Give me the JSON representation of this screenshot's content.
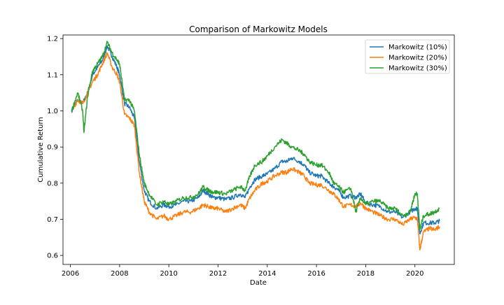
{
  "chart_data": {
    "type": "line",
    "title": "Comparison of Markowitz Models",
    "xlabel": "Date",
    "ylabel": "Cumulative Return",
    "xlim": [
      2005.7,
      2021.6
    ],
    "ylim": [
      0.575,
      1.21
    ],
    "x_ticks": [
      2006,
      2008,
      2010,
      2012,
      2014,
      2016,
      2018,
      2020
    ],
    "x_tick_labels": [
      "2006",
      "2008",
      "2010",
      "2012",
      "2014",
      "2016",
      "2018",
      "2020"
    ],
    "y_ticks": [
      0.6,
      0.7,
      0.8,
      0.9,
      1.0,
      1.1,
      1.2
    ],
    "y_tick_labels": [
      "0.6",
      "0.7",
      "0.8",
      "0.9",
      "1.0",
      "1.1",
      "1.2"
    ],
    "grid": false,
    "legend_position": "top-right",
    "series": [
      {
        "name": "Markowitz (10%)",
        "color": "#1f77b4",
        "points": [
          [
            2006.05,
            1.0
          ],
          [
            2006.3,
            1.03
          ],
          [
            2006.5,
            1.02
          ],
          [
            2006.7,
            1.05
          ],
          [
            2006.9,
            1.1
          ],
          [
            2007.1,
            1.12
          ],
          [
            2007.3,
            1.14
          ],
          [
            2007.5,
            1.18
          ],
          [
            2007.7,
            1.15
          ],
          [
            2007.9,
            1.12
          ],
          [
            2008.0,
            1.1
          ],
          [
            2008.2,
            1.02
          ],
          [
            2008.4,
            1.01
          ],
          [
            2008.6,
            0.98
          ],
          [
            2008.8,
            0.86
          ],
          [
            2009.0,
            0.78
          ],
          [
            2009.2,
            0.75
          ],
          [
            2009.5,
            0.73
          ],
          [
            2009.8,
            0.74
          ],
          [
            2010.0,
            0.735
          ],
          [
            2010.3,
            0.74
          ],
          [
            2010.6,
            0.75
          ],
          [
            2010.9,
            0.75
          ],
          [
            2011.2,
            0.76
          ],
          [
            2011.4,
            0.78
          ],
          [
            2011.6,
            0.77
          ],
          [
            2011.8,
            0.76
          ],
          [
            2012.0,
            0.76
          ],
          [
            2012.3,
            0.755
          ],
          [
            2012.6,
            0.76
          ],
          [
            2012.9,
            0.77
          ],
          [
            2013.1,
            0.76
          ],
          [
            2013.3,
            0.79
          ],
          [
            2013.5,
            0.81
          ],
          [
            2013.8,
            0.82
          ],
          [
            2014.0,
            0.825
          ],
          [
            2014.3,
            0.84
          ],
          [
            2014.6,
            0.86
          ],
          [
            2014.8,
            0.86
          ],
          [
            2015.0,
            0.87
          ],
          [
            2015.3,
            0.86
          ],
          [
            2015.5,
            0.85
          ],
          [
            2015.7,
            0.83
          ],
          [
            2016.0,
            0.82
          ],
          [
            2016.2,
            0.82
          ],
          [
            2016.5,
            0.8
          ],
          [
            2016.7,
            0.79
          ],
          [
            2016.9,
            0.78
          ],
          [
            2017.1,
            0.76
          ],
          [
            2017.4,
            0.765
          ],
          [
            2017.6,
            0.76
          ],
          [
            2017.8,
            0.77
          ],
          [
            2018.0,
            0.745
          ],
          [
            2018.3,
            0.74
          ],
          [
            2018.6,
            0.735
          ],
          [
            2018.9,
            0.72
          ],
          [
            2019.2,
            0.72
          ],
          [
            2019.5,
            0.705
          ],
          [
            2019.8,
            0.72
          ],
          [
            2020.0,
            0.73
          ],
          [
            2020.1,
            0.73
          ],
          [
            2020.2,
            0.66
          ],
          [
            2020.35,
            0.69
          ],
          [
            2020.6,
            0.69
          ],
          [
            2020.8,
            0.69
          ],
          [
            2021.0,
            0.695
          ]
        ]
      },
      {
        "name": "Markowitz (20%)",
        "color": "#ff7f0e",
        "points": [
          [
            2006.05,
            1.0
          ],
          [
            2006.3,
            1.03
          ],
          [
            2006.5,
            1.02
          ],
          [
            2006.7,
            1.05
          ],
          [
            2006.9,
            1.08
          ],
          [
            2007.1,
            1.1
          ],
          [
            2007.3,
            1.13
          ],
          [
            2007.5,
            1.16
          ],
          [
            2007.7,
            1.12
          ],
          [
            2007.9,
            1.1
          ],
          [
            2008.0,
            1.08
          ],
          [
            2008.2,
            0.99
          ],
          [
            2008.4,
            0.98
          ],
          [
            2008.6,
            0.96
          ],
          [
            2008.8,
            0.83
          ],
          [
            2009.0,
            0.75
          ],
          [
            2009.2,
            0.72
          ],
          [
            2009.5,
            0.7
          ],
          [
            2009.8,
            0.71
          ],
          [
            2010.0,
            0.7
          ],
          [
            2010.3,
            0.71
          ],
          [
            2010.6,
            0.72
          ],
          [
            2010.9,
            0.72
          ],
          [
            2011.2,
            0.73
          ],
          [
            2011.4,
            0.74
          ],
          [
            2011.6,
            0.735
          ],
          [
            2011.8,
            0.73
          ],
          [
            2012.0,
            0.73
          ],
          [
            2012.3,
            0.72
          ],
          [
            2012.6,
            0.73
          ],
          [
            2012.9,
            0.74
          ],
          [
            2013.1,
            0.73
          ],
          [
            2013.3,
            0.76
          ],
          [
            2013.5,
            0.78
          ],
          [
            2013.8,
            0.8
          ],
          [
            2014.0,
            0.805
          ],
          [
            2014.3,
            0.82
          ],
          [
            2014.6,
            0.83
          ],
          [
            2014.8,
            0.83
          ],
          [
            2015.0,
            0.84
          ],
          [
            2015.3,
            0.83
          ],
          [
            2015.5,
            0.82
          ],
          [
            2015.7,
            0.8
          ],
          [
            2016.0,
            0.795
          ],
          [
            2016.2,
            0.795
          ],
          [
            2016.5,
            0.78
          ],
          [
            2016.7,
            0.77
          ],
          [
            2016.9,
            0.755
          ],
          [
            2017.1,
            0.735
          ],
          [
            2017.4,
            0.74
          ],
          [
            2017.6,
            0.735
          ],
          [
            2017.8,
            0.745
          ],
          [
            2018.0,
            0.73
          ],
          [
            2018.3,
            0.72
          ],
          [
            2018.6,
            0.71
          ],
          [
            2018.9,
            0.7
          ],
          [
            2019.2,
            0.7
          ],
          [
            2019.5,
            0.685
          ],
          [
            2019.8,
            0.7
          ],
          [
            2020.0,
            0.705
          ],
          [
            2020.1,
            0.7
          ],
          [
            2020.2,
            0.615
          ],
          [
            2020.35,
            0.665
          ],
          [
            2020.6,
            0.675
          ],
          [
            2020.8,
            0.67
          ],
          [
            2021.0,
            0.68
          ]
        ]
      },
      {
        "name": "Markowitz (30%)",
        "color": "#2ca02c",
        "points": [
          [
            2006.05,
            1.0
          ],
          [
            2006.3,
            1.05
          ],
          [
            2006.5,
            1.0
          ],
          [
            2006.55,
            0.94
          ],
          [
            2006.7,
            1.04
          ],
          [
            2006.9,
            1.11
          ],
          [
            2007.1,
            1.13
          ],
          [
            2007.3,
            1.15
          ],
          [
            2007.5,
            1.19
          ],
          [
            2007.7,
            1.16
          ],
          [
            2007.9,
            1.14
          ],
          [
            2008.0,
            1.13
          ],
          [
            2008.2,
            1.03
          ],
          [
            2008.4,
            1.03
          ],
          [
            2008.6,
            1.0
          ],
          [
            2008.8,
            0.88
          ],
          [
            2009.0,
            0.8
          ],
          [
            2009.2,
            0.77
          ],
          [
            2009.5,
            0.74
          ],
          [
            2009.8,
            0.75
          ],
          [
            2010.0,
            0.74
          ],
          [
            2010.3,
            0.75
          ],
          [
            2010.6,
            0.76
          ],
          [
            2010.9,
            0.76
          ],
          [
            2011.2,
            0.77
          ],
          [
            2011.4,
            0.79
          ],
          [
            2011.6,
            0.78
          ],
          [
            2011.8,
            0.775
          ],
          [
            2012.0,
            0.775
          ],
          [
            2012.3,
            0.77
          ],
          [
            2012.6,
            0.78
          ],
          [
            2012.9,
            0.79
          ],
          [
            2013.1,
            0.78
          ],
          [
            2013.3,
            0.82
          ],
          [
            2013.5,
            0.85
          ],
          [
            2013.8,
            0.86
          ],
          [
            2014.0,
            0.875
          ],
          [
            2014.3,
            0.9
          ],
          [
            2014.6,
            0.92
          ],
          [
            2014.8,
            0.91
          ],
          [
            2015.0,
            0.9
          ],
          [
            2015.3,
            0.89
          ],
          [
            2015.5,
            0.88
          ],
          [
            2015.7,
            0.86
          ],
          [
            2016.0,
            0.85
          ],
          [
            2016.2,
            0.85
          ],
          [
            2016.5,
            0.83
          ],
          [
            2016.7,
            0.8
          ],
          [
            2016.9,
            0.79
          ],
          [
            2017.1,
            0.775
          ],
          [
            2017.4,
            0.785
          ],
          [
            2017.6,
            0.72
          ],
          [
            2017.8,
            0.76
          ],
          [
            2018.0,
            0.74
          ],
          [
            2018.3,
            0.75
          ],
          [
            2018.6,
            0.75
          ],
          [
            2018.9,
            0.73
          ],
          [
            2019.2,
            0.73
          ],
          [
            2019.5,
            0.71
          ],
          [
            2019.8,
            0.72
          ],
          [
            2020.0,
            0.77
          ],
          [
            2020.1,
            0.77
          ],
          [
            2020.2,
            0.67
          ],
          [
            2020.35,
            0.71
          ],
          [
            2020.6,
            0.715
          ],
          [
            2020.8,
            0.72
          ],
          [
            2021.0,
            0.73
          ]
        ]
      }
    ]
  }
}
